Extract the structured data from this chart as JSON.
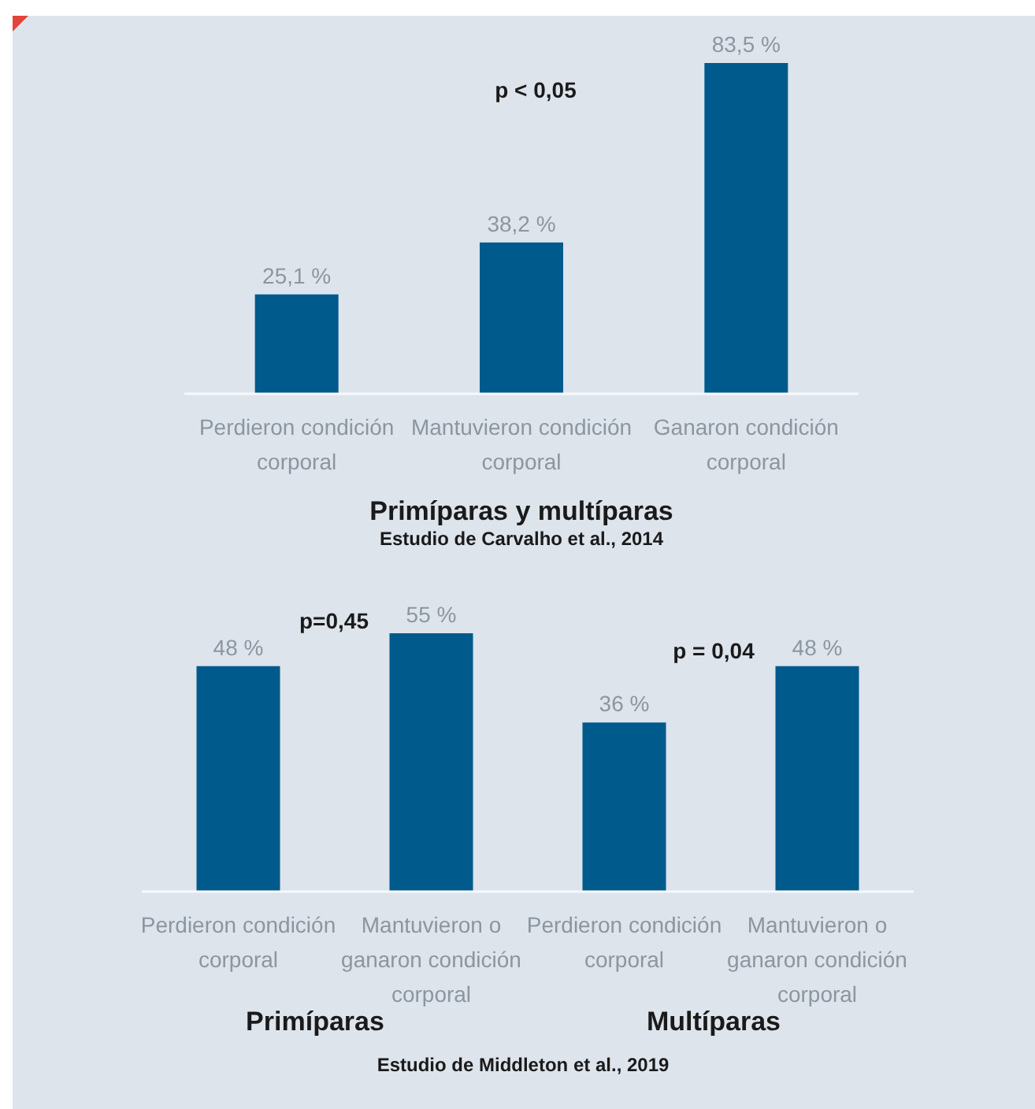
{
  "chart_data": [
    {
      "type": "bar",
      "title": "Primíparas y multíparas",
      "subtitle": "Estudio de Carvalho et al., 2014",
      "categories": [
        "Perdieron condición corporal",
        "Mantuvieron condición corporal",
        "Ganaron condición corporal"
      ],
      "values": [
        25.1,
        38.2,
        83.5
      ],
      "value_labels": [
        "25,1 %",
        "38,2 %",
        "83,5 %"
      ],
      "color": "#005a8c",
      "annotations": [
        "p < 0,05"
      ]
    },
    {
      "type": "bar",
      "xlabel": "Primíparas",
      "categories": [
        "Perdieron condición corporal",
        "Mantuvieron o ganaron condición corporal"
      ],
      "values": [
        48,
        55
      ],
      "value_labels": [
        "48 %",
        "55 %"
      ],
      "color": "#005a8c",
      "annotations": [
        "p=0,45"
      ]
    },
    {
      "type": "bar",
      "xlabel": "Multíparas",
      "categories": [
        "Perdieron condición corporal",
        "Mantuvieron o ganaron condición corporal"
      ],
      "values": [
        36,
        48
      ],
      "value_labels": [
        "36 %",
        "48 %"
      ],
      "color": "#005a8c",
      "annotations": [
        "p = 0,04",
        "Estudio de Middleton et al., 2019"
      ]
    }
  ]
}
